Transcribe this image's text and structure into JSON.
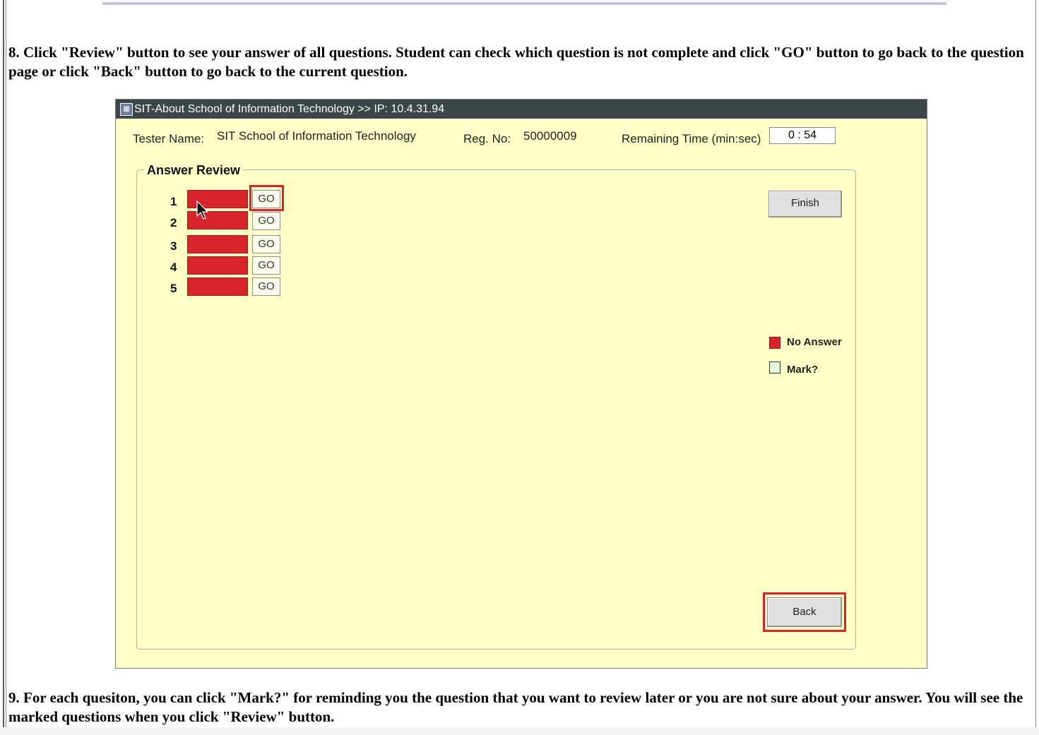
{
  "instructions": {
    "step8": "8. Click \"Review\" button to see your answer of all questions. Student can check which question is not complete and click \"GO\" button to go back to the question page or click \"Back\" button to go back to the current question.",
    "step9": "9. For each quesiton, you can click \"Mark?\" for reminding you the question that you want to review later or you are not sure about your answer. You will see the marked questions when you click \"Review\" button."
  },
  "window": {
    "title": "SIT-About School of Information Technology >> IP: 10.4.31.94",
    "title_icon": "app-icon",
    "header": {
      "tester_name_label": "Tester Name:",
      "tester_name_value": "SIT School of Information Technology",
      "reg_no_label": "Reg. No:",
      "reg_no_value": "50000009",
      "remaining_time_label": "Remaining Time (min:sec)",
      "remaining_time_value": "0 : 54"
    },
    "answer_review": {
      "title": "Answer Review",
      "questions": [
        {
          "number": "1",
          "status": "No Answer",
          "go_label": "GO",
          "highlighted": true
        },
        {
          "number": "2",
          "status": "No Answer",
          "go_label": "GO"
        },
        {
          "number": "3",
          "status": "No Answer",
          "go_label": "GO"
        },
        {
          "number": "4",
          "status": "No Answer",
          "go_label": "GO"
        },
        {
          "number": "5",
          "status": "No Answer",
          "go_label": "GO"
        }
      ]
    },
    "finish_label": "Finish",
    "back_label": "Back",
    "legend": [
      {
        "label": "No Answer",
        "color": "#d8242a"
      },
      {
        "label": "Mark?",
        "color": "#e6f7e0"
      }
    ]
  },
  "colors": {
    "window_bg": "#ffffc8",
    "titlebar_bg": "#3b4648",
    "highlight": "#d8232a"
  }
}
